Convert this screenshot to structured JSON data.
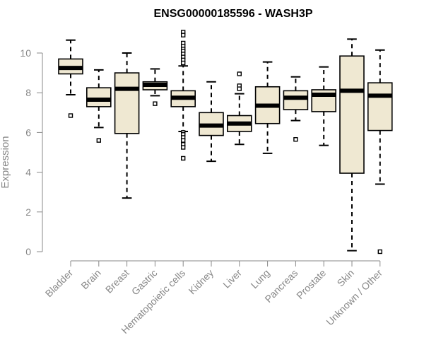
{
  "chart_data": {
    "type": "boxplot",
    "title": "ENSG00000185596 - WASH3P",
    "ylabel": "Expression",
    "xlabel": "",
    "ylim": [
      0,
      11
    ],
    "yticks": [
      0,
      2,
      4,
      6,
      8,
      10
    ],
    "grid": false,
    "legend": "none",
    "colors": {
      "box_fill": "#efe8d2",
      "box_stroke": "#000000",
      "median": "#000000",
      "axis": "#888888",
      "tick_label": "#888888",
      "title": "#000000"
    },
    "categories": [
      "Bladder",
      "Brain",
      "Breast",
      "Gastric",
      "Hematopoietic cells",
      "Kidney",
      "Liver",
      "Lung",
      "Pancreas",
      "Prostate",
      "Skin",
      "Unknown / Other"
    ],
    "boxes": [
      {
        "q1": 8.95,
        "median": 9.25,
        "q3": 9.7,
        "whisker_low": 7.9,
        "whisker_high": 10.65,
        "outliers": [
          6.85
        ]
      },
      {
        "q1": 7.3,
        "median": 7.65,
        "q3": 8.25,
        "whisker_low": 6.25,
        "whisker_high": 9.15,
        "outliers": [
          5.6
        ]
      },
      {
        "q1": 5.95,
        "median": 8.2,
        "q3": 9.0,
        "whisker_low": 2.7,
        "whisker_high": 10.0,
        "outliers": []
      },
      {
        "q1": 8.15,
        "median": 8.4,
        "q3": 8.55,
        "whisker_low": 7.85,
        "whisker_high": 9.2,
        "outliers": [
          7.45
        ]
      },
      {
        "q1": 7.3,
        "median": 7.75,
        "q3": 8.1,
        "whisker_low": 6.05,
        "whisker_high": 9.35,
        "outliers": [
          11.05,
          10.9,
          10.5,
          10.35,
          10.2,
          10.1,
          9.95,
          9.8,
          9.65,
          9.5,
          6.0,
          5.9,
          5.75,
          5.6,
          5.4,
          5.25,
          4.7
        ]
      },
      {
        "q1": 5.85,
        "median": 6.35,
        "q3": 7.0,
        "whisker_low": 4.55,
        "whisker_high": 8.55,
        "outliers": []
      },
      {
        "q1": 6.05,
        "median": 6.45,
        "q3": 6.85,
        "whisker_low": 5.4,
        "whisker_high": 7.95,
        "outliers": [
          8.95,
          8.35,
          8.2
        ]
      },
      {
        "q1": 6.45,
        "median": 7.35,
        "q3": 8.3,
        "whisker_low": 4.95,
        "whisker_high": 9.55,
        "outliers": []
      },
      {
        "q1": 7.15,
        "median": 7.75,
        "q3": 8.1,
        "whisker_low": 6.6,
        "whisker_high": 8.8,
        "outliers": [
          5.65
        ]
      },
      {
        "q1": 7.05,
        "median": 7.9,
        "q3": 8.15,
        "whisker_low": 5.35,
        "whisker_high": 9.3,
        "outliers": []
      },
      {
        "q1": 3.95,
        "median": 8.1,
        "q3": 9.85,
        "whisker_low": 0.05,
        "whisker_high": 10.7,
        "outliers": []
      },
      {
        "q1": 6.1,
        "median": 7.85,
        "q3": 8.5,
        "whisker_low": 3.4,
        "whisker_high": 10.15,
        "outliers": [
          0.0
        ]
      }
    ]
  }
}
